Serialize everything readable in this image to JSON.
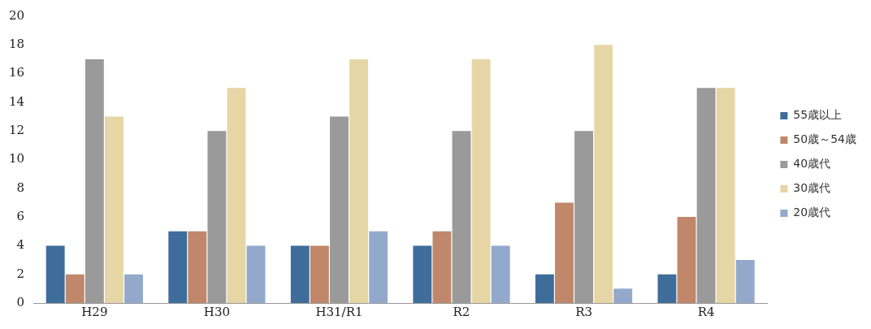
{
  "chart_data": {
    "type": "bar",
    "categories": [
      "H29",
      "H30",
      "H31/R1",
      "R2",
      "R3",
      "R4"
    ],
    "series": [
      {
        "name": "55歳以上",
        "color": "#3f6d9b",
        "values": [
          4,
          5,
          4,
          4,
          2,
          2
        ]
      },
      {
        "name": "50歳～54歳",
        "color": "#c0876a",
        "values": [
          2,
          5,
          4,
          5,
          7,
          6
        ]
      },
      {
        "name": "40歳代",
        "color": "#9a9a9a",
        "values": [
          17,
          12,
          13,
          12,
          12,
          15
        ]
      },
      {
        "name": "30歳代",
        "color": "#e6d6a6",
        "values": [
          13,
          15,
          17,
          17,
          18,
          15
        ]
      },
      {
        "name": "20歳代",
        "color": "#93a9cc",
        "values": [
          2,
          4,
          5,
          4,
          1,
          3
        ]
      }
    ],
    "ylim": [
      0,
      20
    ],
    "yticks": [
      0,
      2,
      4,
      6,
      8,
      10,
      12,
      14,
      16,
      18,
      20
    ],
    "grid": false,
    "legend": "right"
  }
}
